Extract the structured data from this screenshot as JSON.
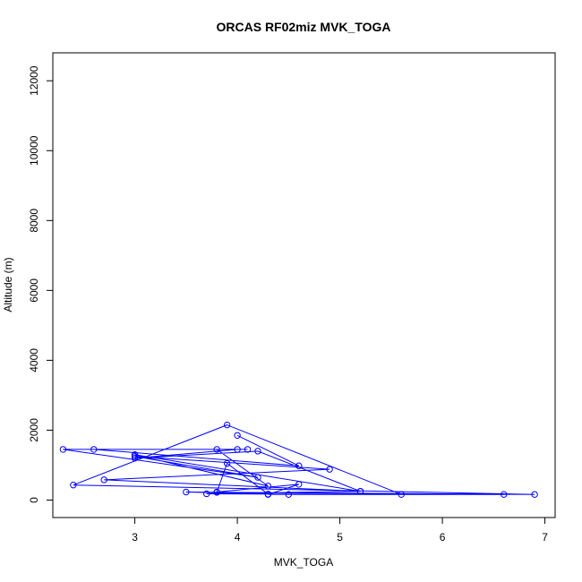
{
  "chart_data": {
    "type": "line",
    "title": "ORCAS RF02miz MVK_TOGA",
    "xlabel": "MVK_TOGA",
    "ylabel": "Altitude (m)",
    "xlim": [
      2.2,
      7.1
    ],
    "ylim": [
      -500,
      12800
    ],
    "x_ticks": [
      3,
      4,
      5,
      6,
      7
    ],
    "y_ticks": [
      0,
      2000,
      4000,
      6000,
      8000,
      10000,
      12000
    ],
    "x_tick_labels": [
      "3",
      "4",
      "5",
      "6",
      "7"
    ],
    "y_tick_labels": [
      "0",
      "2000",
      "4000",
      "6000",
      "8000",
      "10000",
      "12000"
    ],
    "grid": false,
    "legend": "none",
    "series": [
      {
        "color": "#0000ff",
        "markers": "open-circle",
        "points": [
          {
            "x": 4.0,
            "y": 1850
          },
          {
            "x": 4.6,
            "y": 980
          },
          {
            "x": 2.6,
            "y": 1450
          },
          {
            "x": 4.1,
            "y": 1450
          },
          {
            "x": 2.3,
            "y": 1450
          },
          {
            "x": 4.2,
            "y": 650
          },
          {
            "x": 3.0,
            "y": 1250
          },
          {
            "x": 4.9,
            "y": 880
          },
          {
            "x": 2.7,
            "y": 580
          },
          {
            "x": 5.2,
            "y": 250
          },
          {
            "x": 3.0,
            "y": 1300
          },
          {
            "x": 4.3,
            "y": 400
          },
          {
            "x": 3.8,
            "y": 1450
          },
          {
            "x": 4.0,
            "y": 1450
          },
          {
            "x": 3.0,
            "y": 1200
          },
          {
            "x": 4.2,
            "y": 1400
          },
          {
            "x": 5.2,
            "y": 250
          },
          {
            "x": 3.7,
            "y": 180
          },
          {
            "x": 5.6,
            "y": 160
          },
          {
            "x": 3.9,
            "y": 2150
          },
          {
            "x": 2.4,
            "y": 430
          },
          {
            "x": 6.9,
            "y": 160
          },
          {
            "x": 3.5,
            "y": 230
          },
          {
            "x": 4.5,
            "y": 160
          },
          {
            "x": 3.8,
            "y": 220
          },
          {
            "x": 6.6,
            "y": 160
          },
          {
            "x": 4.3,
            "y": 160
          },
          {
            "x": 4.6,
            "y": 450
          },
          {
            "x": 3.8,
            "y": 230
          },
          {
            "x": 3.9,
            "y": 1050
          },
          {
            "x": 4.3,
            "y": 170
          }
        ]
      }
    ]
  }
}
